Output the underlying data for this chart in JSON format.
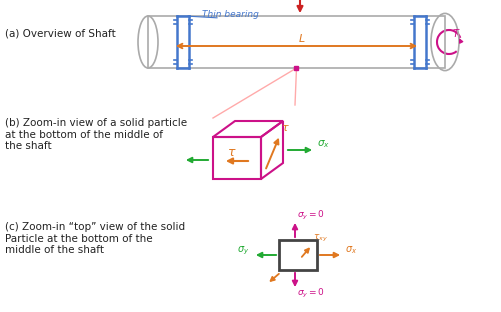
{
  "bg_color": "#ffffff",
  "text_color": "#222222",
  "label_a": "(a) Overview of Shaft",
  "label_b": "(b) Zoom-in view of a solid particle\nat the bottom of the middle of\nthe shaft",
  "label_c": "(c) Zoom-in “top” view of the solid\nParticle at the bottom of the\nmiddle of the shaft",
  "thin_bearing_label": "Thin bearing",
  "shaft_color": "#aaaaaa",
  "bearing_color": "#4477cc",
  "length_arrow_color": "#e07820",
  "load_arrow_color": "#cc2222",
  "torque_color": "#cc1188",
  "tau_color": "#e07820",
  "sigma_color": "#22aa33",
  "zoom_lines_color": "#ffaaaa",
  "cube_color": "#cc1188",
  "rect_color": "#444444"
}
